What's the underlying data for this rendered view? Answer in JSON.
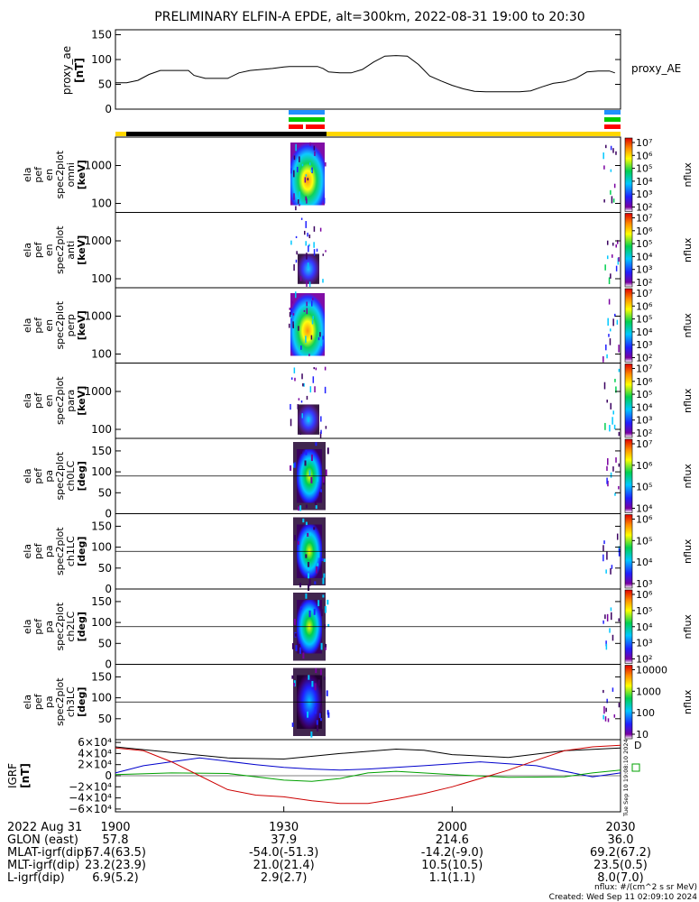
{
  "title": "PRELIMINARY ELFIN-A EPDE, alt=300km, 2022-08-31 19:00 to 20:30",
  "proxy_ae": {
    "ylabel": "proxy_ae",
    "yunit": "[nT]",
    "legend": "proxy_AE",
    "yticks": [
      "0",
      "50",
      "100",
      "150"
    ],
    "ylim": [
      0,
      160
    ],
    "xlim": [
      0,
      90
    ],
    "x": [
      0,
      2,
      4,
      6,
      8,
      9,
      10,
      12,
      13,
      14,
      16,
      17,
      18,
      20,
      22,
      24,
      26,
      28,
      30,
      31,
      32,
      34,
      36,
      37,
      38,
      40,
      42,
      44,
      46,
      48,
      50,
      52,
      54,
      56,
      58,
      60,
      62,
      64,
      66,
      68,
      70,
      72,
      74,
      76,
      78,
      80,
      82,
      84,
      86,
      88,
      89
    ],
    "y": [
      53,
      53,
      58,
      70,
      78,
      78,
      78,
      78,
      78,
      68,
      62,
      62,
      62,
      62,
      73,
      78,
      80,
      82,
      85,
      86,
      86,
      86,
      86,
      82,
      75,
      73,
      73,
      80,
      95,
      107,
      108,
      107,
      90,
      67,
      57,
      48,
      41,
      36,
      35,
      35,
      35,
      35,
      37,
      45,
      52,
      55,
      62,
      75,
      77,
      77,
      73
    ]
  },
  "tracks": {
    "science_bars": [
      "#1e90ff",
      "#00c800",
      "#ff0000"
    ],
    "colors": {
      "black": "#000000",
      "yellow": "#ffd700"
    }
  },
  "spec_panels": [
    {
      "id": "omni",
      "label_lines": [
        "ela",
        "pef",
        "en",
        "spec2plot",
        "omni",
        "[keV]"
      ],
      "yticks": [
        "100",
        "1000"
      ],
      "cbar_ticks": [
        "10²",
        "10³",
        "10⁴",
        "10⁵",
        "10⁶",
        "10⁷"
      ],
      "cbar_label": "nflux"
    },
    {
      "id": "anti",
      "label_lines": [
        "ela",
        "pef",
        "en",
        "spec2plot",
        "anti",
        "[keV]"
      ],
      "yticks": [
        "100",
        "1000"
      ],
      "cbar_ticks": [
        "10²",
        "10³",
        "10⁴",
        "10⁵",
        "10⁶",
        "10⁷"
      ],
      "cbar_label": "nflux"
    },
    {
      "id": "perp",
      "label_lines": [
        "ela",
        "pef",
        "en",
        "spec2plot",
        "perp",
        "[keV]"
      ],
      "yticks": [
        "100",
        "1000"
      ],
      "cbar_ticks": [
        "10²",
        "10³",
        "10⁴",
        "10⁵",
        "10⁶",
        "10⁷"
      ],
      "cbar_label": "nflux"
    },
    {
      "id": "para",
      "label_lines": [
        "ela",
        "pef",
        "en",
        "spec2plot",
        "para",
        "[keV]"
      ],
      "yticks": [
        "100",
        "1000"
      ],
      "cbar_ticks": [
        "10²",
        "10³",
        "10⁴",
        "10⁵",
        "10⁶",
        "10⁷"
      ],
      "cbar_label": "nflux"
    },
    {
      "id": "ch0LC",
      "label_lines": [
        "ela",
        "pef",
        "pa",
        "spec2plot",
        "ch0LC",
        "[deg]"
      ],
      "yticks": [
        "0",
        "50",
        "100",
        "150"
      ],
      "cbar_ticks": [
        "10⁴",
        "10⁵",
        "10⁶",
        "10⁷"
      ],
      "cbar_label": "nflux"
    },
    {
      "id": "ch1LC",
      "label_lines": [
        "ela",
        "pef",
        "pa",
        "spec2plot",
        "ch1LC",
        "[deg]"
      ],
      "yticks": [
        "0",
        "50",
        "100",
        "150"
      ],
      "cbar_ticks": [
        "10³",
        "10⁴",
        "10⁵",
        "10⁶"
      ],
      "cbar_label": "nflux"
    },
    {
      "id": "ch2LC",
      "label_lines": [
        "ela",
        "pef",
        "pa",
        "spec2plot",
        "ch2LC",
        "[deg]"
      ],
      "yticks": [
        "0",
        "50",
        "100",
        "150"
      ],
      "cbar_ticks": [
        "10²",
        "10³",
        "10⁴",
        "10⁵",
        "10⁶"
      ],
      "cbar_label": "nflux"
    },
    {
      "id": "ch3LC",
      "label_lines": [
        "ela",
        "pef",
        "pa",
        "spec2plot",
        "ch3LC",
        "[deg]"
      ],
      "yticks": [
        "50",
        "100",
        "150"
      ],
      "cbar_ticks": [
        "10",
        "100",
        "1000",
        "10000"
      ],
      "cbar_label": "nflux"
    }
  ],
  "igrf": {
    "ylabel": "IGRF",
    "yunit": "[nT]",
    "yticks": [
      "−6×10⁴",
      "−4×10⁴",
      "−2×10⁴",
      "0",
      "2×10⁴",
      "4×10⁴",
      "6×10⁴"
    ],
    "ylim": [
      -65000,
      65000
    ],
    "xlim": [
      0,
      90
    ],
    "series": [
      {
        "color": "#000000",
        "x": [
          0,
          10,
          20,
          30,
          40,
          50,
          55,
          60,
          70,
          80,
          90
        ],
        "y": [
          52000,
          42000,
          32000,
          30000,
          40000,
          48000,
          46000,
          38000,
          33000,
          45000,
          50000
        ]
      },
      {
        "color": "#0000cc",
        "x": [
          0,
          5,
          15,
          25,
          30,
          35,
          40,
          45,
          55,
          65,
          75,
          85,
          90
        ],
        "y": [
          5000,
          18000,
          32000,
          20000,
          15000,
          12000,
          10000,
          12000,
          18000,
          25000,
          18000,
          -2000,
          5000
        ]
      },
      {
        "color": "#00a000",
        "x": [
          0,
          10,
          20,
          30,
          35,
          40,
          45,
          50,
          60,
          70,
          80,
          85,
          90
        ],
        "y": [
          2000,
          5000,
          4000,
          -8000,
          -10000,
          -5000,
          5000,
          8000,
          2000,
          -3000,
          -2000,
          5000,
          10000
        ]
      },
      {
        "color": "#cc0000",
        "x": [
          0,
          5,
          10,
          15,
          20,
          25,
          30,
          35,
          40,
          45,
          50,
          55,
          60,
          65,
          70,
          75,
          80,
          85,
          90
        ],
        "y": [
          50000,
          45000,
          25000,
          0,
          -25000,
          -35000,
          -38000,
          -45000,
          -50000,
          -50000,
          -42000,
          -32000,
          -20000,
          -5000,
          10000,
          28000,
          45000,
          52000,
          55000
        ]
      }
    ]
  },
  "xaxis": {
    "date_label": "2022 Aug 31",
    "ticks": [
      "1900",
      "1930",
      "2000",
      "2030"
    ],
    "rows": [
      {
        "label": "GLON (east)",
        "values": [
          "57.8",
          "37.9",
          "214.6",
          "36.0"
        ]
      },
      {
        "label": "MLAT-igrf(dip)",
        "values": [
          "67.4(63.5)",
          "-54.0(-51.3)",
          "-14.2(-9.0)",
          "69.2(67.2)"
        ]
      },
      {
        "label": "MLT-igrf(dip)",
        "values": [
          "23.2(23.9)",
          "21.0(21.4)",
          "10.5(10.5)",
          "23.5(0.5)"
        ]
      },
      {
        "label": "L-igrf(dip)",
        "values": [
          "6.9(5.2)",
          "2.9(2.7)",
          "1.1(1.1)",
          "8.0(7.0)"
        ]
      }
    ]
  },
  "footer": {
    "units": "nflux: #/(cm^2 s sr MeV)",
    "created": "Created: Wed Sep 11 02:09:10 2024",
    "side_stamp": "Tue Sep 10 19:08:10 2024"
  }
}
